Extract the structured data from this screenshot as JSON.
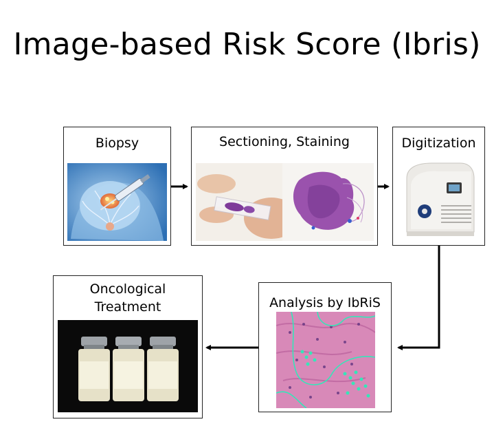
{
  "title": "Image-based Risk Score (Ibris)",
  "steps": {
    "biopsy": "Biopsy",
    "sectioning": "Sectioning, Staining",
    "digitization": "Digitization",
    "analysis": "Analysis by IbRiS",
    "treatment_line1": "Oncological",
    "treatment_line2": "Treatment"
  },
  "images": {
    "biopsy": "breast biopsy illustration",
    "sectioning": "slide handling and stained tissue section",
    "digitization": "slide scanner",
    "analysis": "annotated histology tile",
    "treatment": "drug vials"
  },
  "colors": {
    "arrow": "#000000",
    "box_border": "#222222",
    "annotation": "#35e6b8"
  }
}
